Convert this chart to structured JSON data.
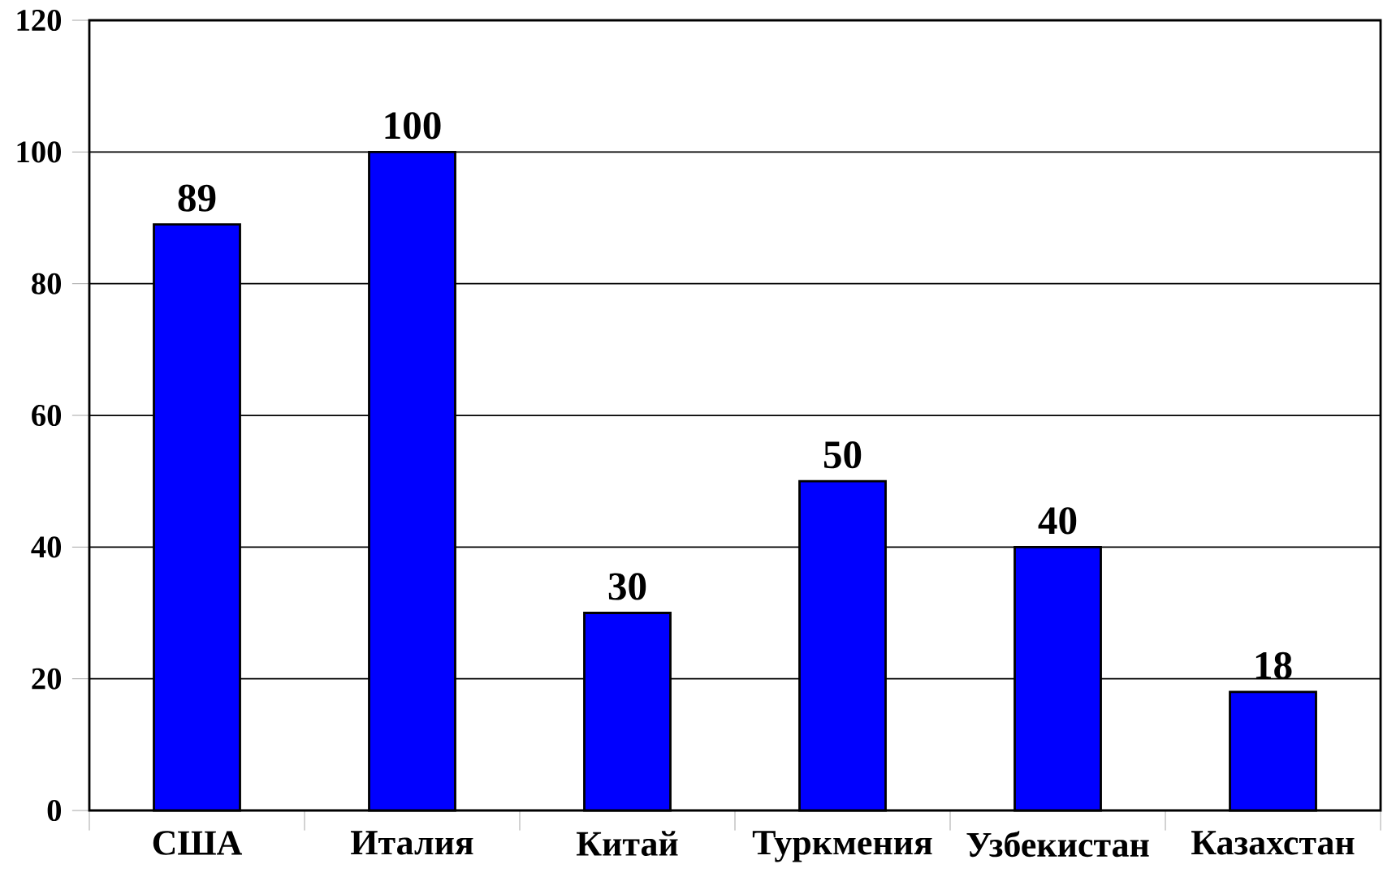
{
  "chart_data": {
    "type": "bar",
    "categories": [
      "США",
      "Италия",
      "Китай",
      "Туркмения",
      "Узбекистан",
      "Казахстан"
    ],
    "values": [
      89,
      100,
      30,
      50,
      40,
      18
    ],
    "color": "#0000ff",
    "ylim": [
      0,
      120
    ],
    "yticks": [
      0,
      20,
      40,
      60,
      80,
      100,
      120
    ],
    "grid": "y",
    "data_labels": true
  }
}
